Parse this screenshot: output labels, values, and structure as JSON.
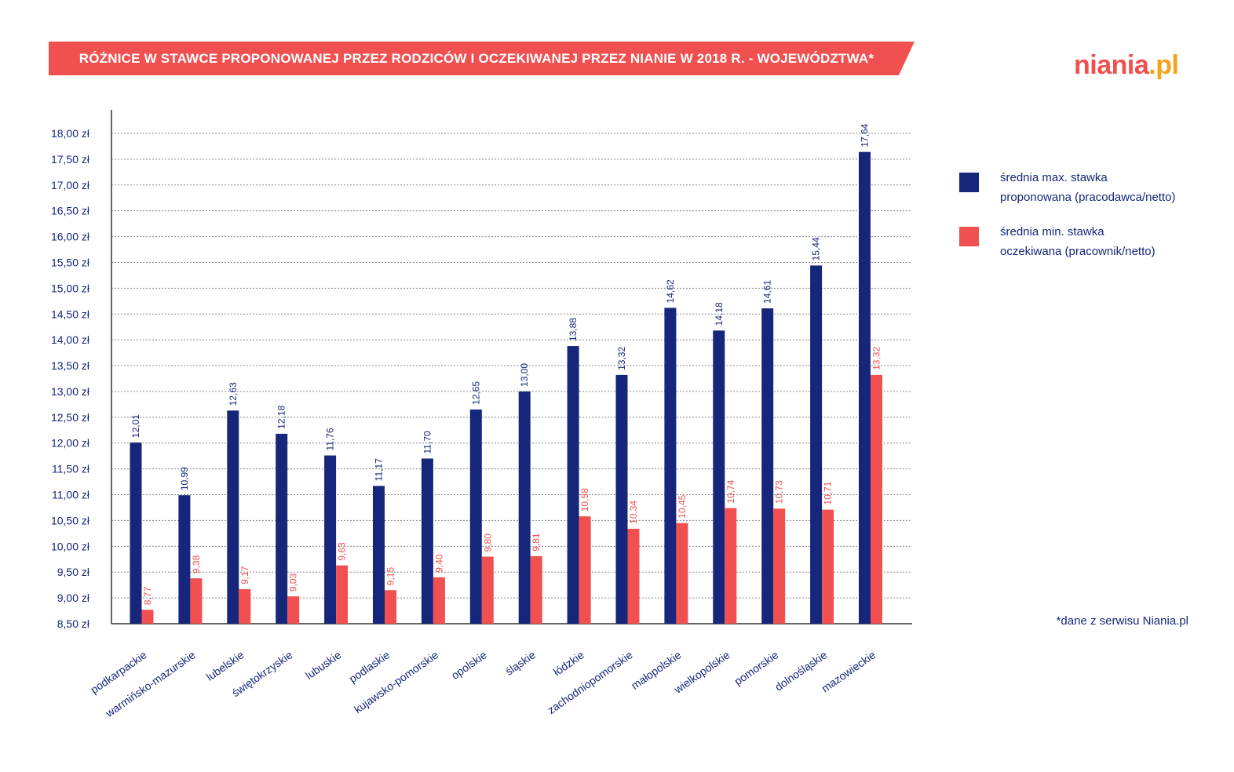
{
  "header": {
    "title": "RÓŻNICE W STAWCE PROPONOWANEJ PRZEZ RODZICÓW I OCZEKIWANEJ PRZEZ NIANIE W 2018 R. - WOJEWÓDZTWA*",
    "logo_text_main": "niania",
    "logo_text_tld": ".pl",
    "banner_color": "#f0504f"
  },
  "footnote": "*dane z serwisu Niania.pl",
  "colors": {
    "navy": "#16267a",
    "coral": "#f0504f",
    "grid": "#888888",
    "axis": "#333333"
  },
  "chart_data": {
    "type": "bar",
    "title": "",
    "xlabel": "",
    "ylabel": "",
    "ylim": [
      8.5,
      18.0
    ],
    "ytick_step": 0.5,
    "ytick_labels": [
      "8,50 zł",
      "9,00 zł",
      "9,50 zł",
      "10,00 zł",
      "10,50 zł",
      "11,00 zł",
      "11,50 zł",
      "12,00 zł",
      "12,50 zł",
      "13,00 zł",
      "13,50 zł",
      "14,00 zł",
      "14,50 zł",
      "15,00 zł",
      "15,50 zł",
      "16,00 zł",
      "16,50 zł",
      "17,00 zł",
      "17,50 zł",
      "18,00 zł"
    ],
    "grid": true,
    "legend_position": "right",
    "categories": [
      "podkarpackie",
      "warmińsko-mazurskie",
      "lubelskie",
      "świętokrzyskie",
      "lubuskie",
      "podlaskie",
      "kujawsko-pomorskie",
      "opolskie",
      "śląskie",
      "łódzkie",
      "zachodniopomorskie",
      "małopolskie",
      "wielkopolskie",
      "pomorskie",
      "dolnośląskie",
      "mazowieckie"
    ],
    "series": [
      {
        "name": "średnia max. stawka proponowana (pracodawca/netto)",
        "legend_lines": [
          "średnia max. stawka",
          "proponowana (pracodawca/netto)"
        ],
        "color": "#16267a",
        "values": [
          12.01,
          10.99,
          12.63,
          12.18,
          11.76,
          11.17,
          11.7,
          12.65,
          13.0,
          13.88,
          13.32,
          14.62,
          14.18,
          14.61,
          15.44,
          17.64
        ],
        "labels": [
          "12,01",
          "10,99",
          "12,63",
          "12,18",
          "11,76",
          "11,17",
          "11,70",
          "12,65",
          "13,00",
          "13,88",
          "13,32",
          "14,62",
          "14,18",
          "14,61",
          "15,44",
          "17,64"
        ]
      },
      {
        "name": "średnia min. stawka oczekiwana (pracownik/netto)",
        "legend_lines": [
          "średnia min. stawka",
          "oczekiwana (pracownik/netto)"
        ],
        "color": "#f0504f",
        "values": [
          8.77,
          9.38,
          9.17,
          9.03,
          9.63,
          9.15,
          9.4,
          9.8,
          9.81,
          10.58,
          10.34,
          10.45,
          10.74,
          10.73,
          10.71,
          13.32
        ],
        "labels": [
          "8,77",
          "9,38",
          "9,17",
          "9,03",
          "9,63",
          "9,15",
          "9,40",
          "9,80",
          "9,81",
          "10,58",
          "10,34",
          "10,45",
          "10,74",
          "10,73",
          "10,71",
          "13,32"
        ]
      }
    ]
  }
}
